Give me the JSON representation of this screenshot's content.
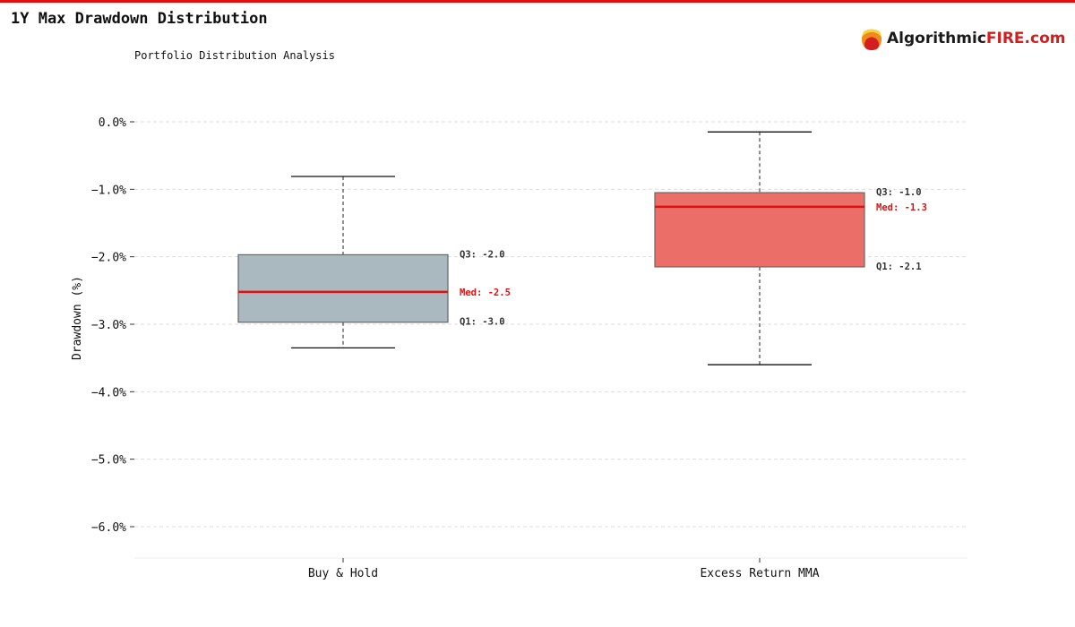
{
  "header": {
    "title": "1Y Max Drawdown Distribution",
    "subtitle": "Portfolio Distribution Analysis"
  },
  "logo": {
    "text_main": "Algorithmic",
    "text_accent": "FIRE.com"
  },
  "colors": {
    "accent": "#e01010",
    "buy_hold_box": "#aab8bf",
    "mma_box": "#ec6e68",
    "median": "#e01010"
  },
  "chart_data": {
    "type": "box",
    "title": "1Y Max Drawdown Distribution",
    "xlabel": "",
    "ylabel": "Drawdown (%)",
    "ylim": [
      -6.47,
      0.5
    ],
    "yticks": [
      0,
      -1,
      -2,
      -3,
      -4,
      -5,
      -6
    ],
    "ytick_labels": [
      "0.0%",
      "−1.0%",
      "−2.0%",
      "−3.0%",
      "−4.0%",
      "−5.0%",
      "−6.0%"
    ],
    "grid": true,
    "categories": [
      "Buy & Hold",
      "Excess Return MMA"
    ],
    "series": [
      {
        "name": "Buy & Hold",
        "whisker_high": -0.81,
        "q3": -1.97,
        "median": -2.52,
        "q1": -2.97,
        "whisker_low": -3.35,
        "labels": {
          "q3": "Q3: -2.0",
          "median": "Med: -2.5",
          "q1": "Q1: -3.0"
        }
      },
      {
        "name": "Excess Return MMA",
        "whisker_high": -0.15,
        "q3": -1.05,
        "median": -1.26,
        "q1": -2.15,
        "whisker_low": -3.6,
        "labels": {
          "q3": "Q3: -1.0",
          "median": "Med: -1.3",
          "q1": "Q1: -2.1"
        }
      }
    ]
  }
}
